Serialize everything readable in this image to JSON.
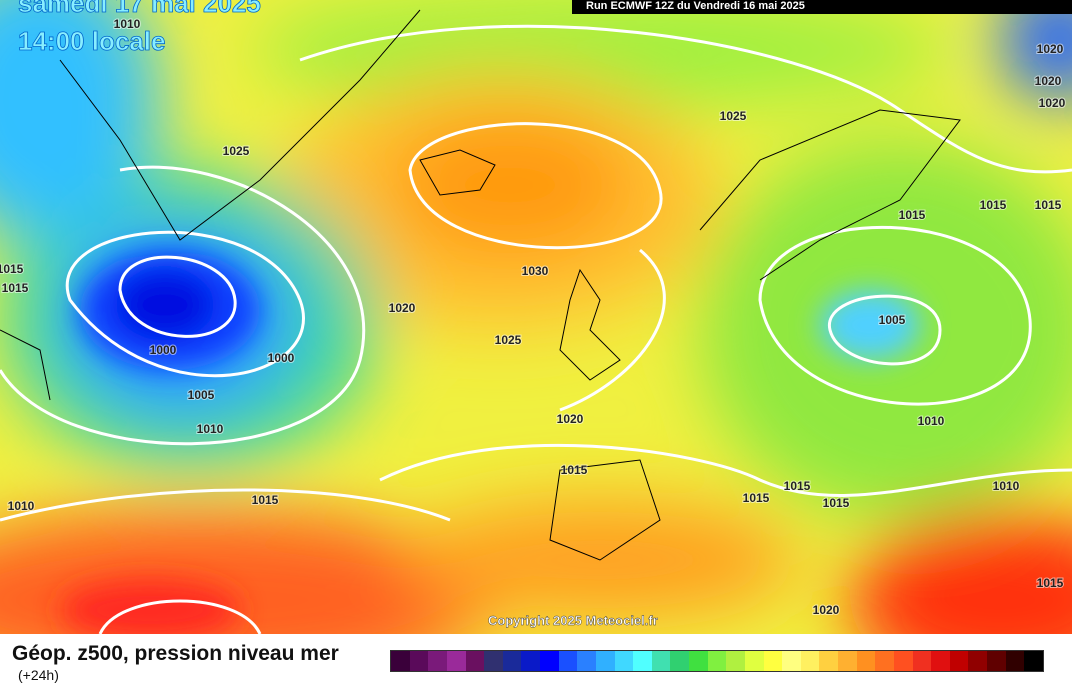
{
  "header": {
    "date": "samedi 17 mai 2025",
    "time": "14:00 locale",
    "run": "Run ECMWF 12Z du Vendredi 16 mai 2025"
  },
  "isobar_labels": [
    "1010",
    "1020",
    "1020",
    "1020",
    "1025",
    "1025",
    "1015",
    "1015",
    "1015",
    "1015",
    "1015",
    "1030",
    "1020",
    "1025",
    "1005",
    "1000",
    "1000",
    "1005",
    "1010",
    "1020",
    "1010",
    "1015",
    "1015",
    "1015",
    "1015",
    "1010",
    "1010",
    "1015",
    "1015",
    "1020"
  ],
  "copyright": "Copyright 2025 Meteociel.fr",
  "footer": {
    "title": "Géop. z500, pression niveau mer",
    "subtitle": "(+24h)"
  },
  "scale_colors": [
    "#3a003a",
    "#5a0a5a",
    "#7a1a7a",
    "#9a2a9a",
    "#6a1060",
    "#303070",
    "#1a2a9a",
    "#0a1ac8",
    "#0000ff",
    "#1a50ff",
    "#2a80ff",
    "#30b0ff",
    "#40d8ff",
    "#50ffff",
    "#40e0b0",
    "#30d070",
    "#40e040",
    "#80f040",
    "#b0f040",
    "#e0ff40",
    "#ffff40",
    "#ffff80",
    "#fff060",
    "#ffd040",
    "#ffb030",
    "#ff9020",
    "#ff7020",
    "#ff5020",
    "#f03020",
    "#e01010",
    "#c00000",
    "#900000",
    "#600000",
    "#300000",
    "#000000"
  ]
}
